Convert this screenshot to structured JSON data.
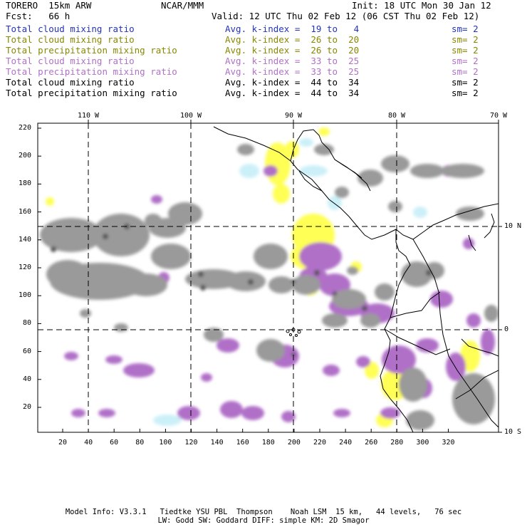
{
  "header": {
    "model": "TORERO  15km ARW",
    "center": "NCAR/MMM",
    "init": "Init: 18 UTC Mon 30 Jan 12",
    "fcst": "Fcst:   66 h",
    "valid": "Valid: 12 UTC Thu 02 Feb 12 (06 CST Thu 02 Feb 12)"
  },
  "fields": [
    {
      "name": "Total cloud mixing ratio",
      "kindex": "Avg. k-index =  19 to   4",
      "sm": "sm= 2",
      "color": "#2233bb"
    },
    {
      "name": "Total cloud mixing ratio",
      "kindex": "Avg. k-index =  26 to  20",
      "sm": "sm= 2",
      "color": "#888800"
    },
    {
      "name": "Total precipitation mixing ratio",
      "kindex": "Avg. k-index =  26 to  20",
      "sm": "sm= 2",
      "color": "#888800"
    },
    {
      "name": "Total cloud mixing ratio",
      "kindex": "Avg. k-index =  33 to  25",
      "sm": "sm= 2",
      "color": "#b070c8"
    },
    {
      "name": "Total precipitation mixing ratio",
      "kindex": "Avg. k-index =  33 to  25",
      "sm": "sm= 2",
      "color": "#b070c8"
    },
    {
      "name": "Total cloud mixing ratio",
      "kindex": "Avg. k-index =  44 to  34",
      "sm": "sm= 2",
      "color": "#000000"
    },
    {
      "name": "Total precipitation mixing ratio",
      "kindex": "Avg. k-index =  44 to  34",
      "sm": "sm= 2",
      "color": "#000000"
    }
  ],
  "map": {
    "lon_labels": [
      "110 W",
      "100 W",
      "90 W",
      "80 W",
      "70 W"
    ],
    "lat_labels": [
      "10 N",
      "0",
      "10 S"
    ],
    "y_ticks": [
      "220",
      "200",
      "180",
      "160",
      "140",
      "120",
      "100",
      "80",
      "60",
      "40",
      "20"
    ],
    "x_ticks": [
      "20",
      "40",
      "60",
      "80",
      "100",
      "120",
      "140",
      "160",
      "180",
      "200",
      "220",
      "240",
      "260",
      "280",
      "300",
      "320"
    ],
    "colors": {
      "light_blue": "#ccf0f8",
      "yellow": "#ffff55",
      "magenta": "#b070c8",
      "gray": "#9a9a9a",
      "dark_gray": "#555555",
      "black": "#000000"
    }
  },
  "footer": {
    "line1": "Model Info: V3.3.1   Tiedtke YSU PBL  Thompson    Noah LSM  15 km,   44 levels,   76 sec",
    "line2": "LW: Godd SW: Goddard DIFF: simple KM: 2D Smagor"
  }
}
